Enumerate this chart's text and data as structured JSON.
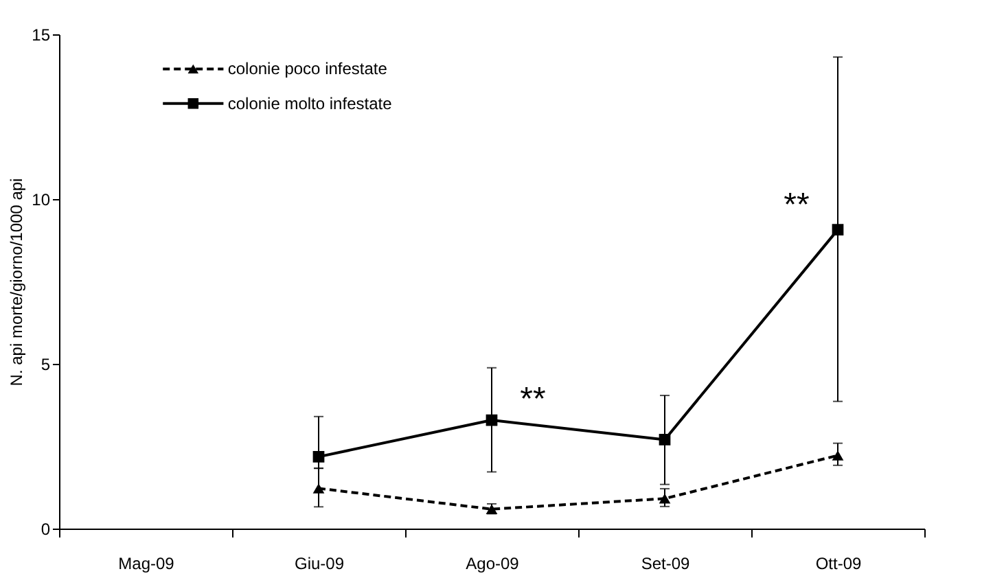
{
  "chart_data": {
    "type": "line",
    "ylabel": "N. api morte/giorno/1000 api",
    "categories": [
      "Mag-09",
      "Giu-09",
      "Ago-09",
      "Set-09",
      "Ott-09"
    ],
    "series": [
      {
        "name": "colonie poco infestate",
        "color": "#000000",
        "marker": "triangle",
        "line_style": "dashed",
        "values": [
          null,
          1.22,
          0.59,
          0.91,
          2.22
        ],
        "errors": [
          null,
          [
            0.66,
            1.83
          ],
          [
            0.45,
            0.75
          ],
          [
            0.67,
            1.21
          ],
          [
            1.92,
            2.59
          ]
        ]
      },
      {
        "name": "colonie molto infestate",
        "color": "#000000",
        "marker": "square",
        "line_style": "solid",
        "values": [
          null,
          2.18,
          3.29,
          2.7,
          9.07
        ],
        "errors": [
          null,
          [
            1.83,
            3.4
          ],
          [
            1.72,
            4.88
          ],
          [
            1.34,
            4.04
          ],
          [
            3.86,
            14.31
          ]
        ]
      }
    ],
    "ylim": [
      0,
      15
    ],
    "yticks": [
      0,
      5,
      10,
      15
    ],
    "grid": false,
    "legend": "top left",
    "annotations": [
      {
        "text": "**",
        "x": "Ago-09",
        "y": 3.9
      },
      {
        "text": "**",
        "x": "Ott-09",
        "y": 9.8
      }
    ]
  }
}
